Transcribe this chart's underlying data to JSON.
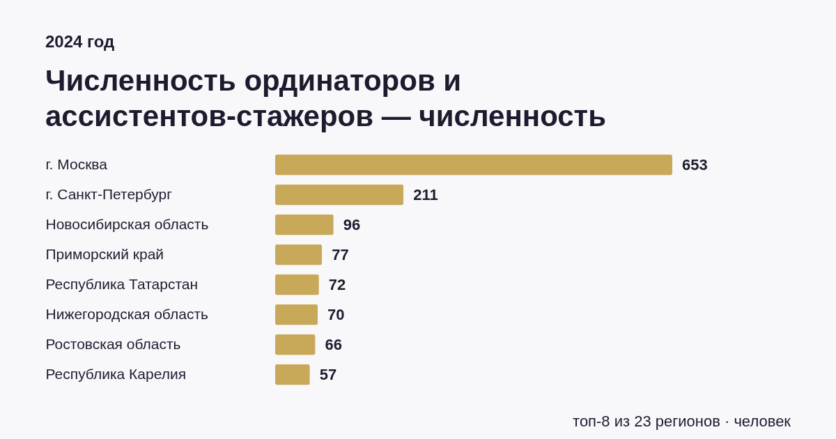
{
  "chart_data": {
    "type": "bar",
    "orientation": "horizontal",
    "title": "Численность ординаторов и ассистентов-стажеров — численность",
    "subtitle": "2024 год",
    "categories": [
      "г. Москва",
      "г. Санкт-Петербург",
      "Новосибирская область",
      "Приморский край",
      "Республика Татарстан",
      "Нижегородская область",
      "Ростовская область",
      "Республика Карелия"
    ],
    "values": [
      653,
      211,
      96,
      77,
      72,
      70,
      66,
      57
    ],
    "color": "#c8a95a",
    "data_labels": true,
    "annotations": [
      "топ-8 из 23 регионов · человек"
    ]
  }
}
